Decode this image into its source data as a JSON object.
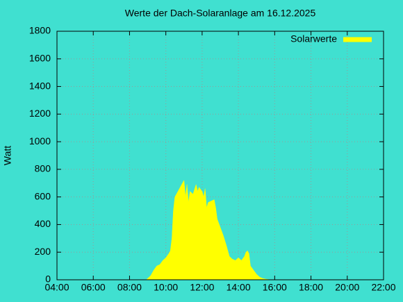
{
  "chart_data": {
    "type": "area",
    "title": "Werte der Dach-Solaranlage am 16.12.2025",
    "y_label": "Watt",
    "series": [
      {
        "name": "Solarwerte",
        "color": "#ffff00",
        "x": [
          "08:55",
          "09:00",
          "09:10",
          "09:20",
          "09:30",
          "09:40",
          "09:50",
          "10:00",
          "10:10",
          "10:15",
          "10:20",
          "10:25",
          "10:30",
          "10:40",
          "10:50",
          "11:00",
          "11:05",
          "11:10",
          "11:15",
          "11:20",
          "11:30",
          "11:40",
          "11:45",
          "11:50",
          "12:00",
          "12:05",
          "12:10",
          "12:15",
          "12:20",
          "12:30",
          "12:40",
          "12:45",
          "12:50",
          "13:00",
          "13:10",
          "13:20",
          "13:30",
          "13:40",
          "13:50",
          "14:00",
          "14:10",
          "14:20",
          "14:25",
          "14:30",
          "14:35",
          "14:40",
          "14:50",
          "15:00",
          "15:10",
          "15:20",
          "15:30",
          "15:40",
          "15:45"
        ],
        "values": [
          0,
          10,
          30,
          70,
          100,
          110,
          140,
          160,
          190,
          210,
          300,
          500,
          600,
          640,
          680,
          720,
          600,
          690,
          560,
          640,
          620,
          690,
          640,
          670,
          640,
          600,
          660,
          520,
          560,
          570,
          580,
          520,
          440,
          380,
          320,
          250,
          170,
          150,
          140,
          160,
          140,
          170,
          200,
          210,
          190,
          100,
          70,
          40,
          20,
          10,
          5,
          2,
          0
        ]
      }
    ],
    "xlim": [
      "04:00",
      "22:00"
    ],
    "xticks": [
      "04:00",
      "06:00",
      "08:00",
      "10:00",
      "12:00",
      "14:00",
      "16:00",
      "18:00",
      "20:00",
      "22:00"
    ],
    "ylim": [
      0,
      1800
    ],
    "yticks": [
      0,
      200,
      400,
      600,
      800,
      1000,
      1200,
      1400,
      1600,
      1800
    ],
    "grid": true,
    "legend": "top-right"
  }
}
